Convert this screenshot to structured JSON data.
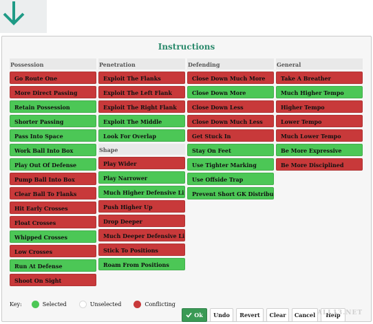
{
  "dialog": {
    "title": "Instructions"
  },
  "colors": {
    "selected": "#4cc756",
    "conflicting": "#c8393a",
    "unselected": "#ffffff",
    "accent": "#2b8a6c"
  },
  "columns": [
    {
      "header": "Possession",
      "items": [
        {
          "label": "Go Route One",
          "state": "red"
        },
        {
          "label": "More Direct Passing",
          "state": "red"
        },
        {
          "label": "Retain Possession",
          "state": "green"
        },
        {
          "label": "Shorter Passing",
          "state": "green"
        },
        {
          "label": "Pass Into Space",
          "state": "green"
        },
        {
          "label": "Work Ball Into Box",
          "state": "green"
        },
        {
          "label": "Play Out Of Defense",
          "state": "green"
        },
        {
          "label": "Pump Ball Into Box",
          "state": "red"
        },
        {
          "label": "Clear Ball To Flanks",
          "state": "red"
        },
        {
          "label": "Hit Early Crosses",
          "state": "red"
        },
        {
          "label": "Float Crosses",
          "state": "red"
        },
        {
          "label": "Whipped Crosses",
          "state": "green"
        },
        {
          "label": "Low Crosses",
          "state": "red"
        },
        {
          "label": "Run At Defense",
          "state": "green"
        },
        {
          "label": "Shoot On Sight",
          "state": "red"
        }
      ]
    },
    {
      "header": "Penetration",
      "items": [
        {
          "label": "Exploit The Flanks",
          "state": "red"
        },
        {
          "label": "Exploit The Left Flank",
          "state": "red"
        },
        {
          "label": "Exploit The Right Flank",
          "state": "red"
        },
        {
          "label": "Exploit The Middle",
          "state": "green"
        },
        {
          "label": "Look For Overlap",
          "state": "green"
        }
      ],
      "subheader": "Shape",
      "subitems": [
        {
          "label": "Play Wider",
          "state": "red"
        },
        {
          "label": "Play Narrower",
          "state": "green"
        },
        {
          "label": "Much Higher Defensive Line",
          "state": "green"
        },
        {
          "label": "Push Higher Up",
          "state": "red"
        },
        {
          "label": "Drop Deeper",
          "state": "red"
        },
        {
          "label": "Much Deeper Defensive Line",
          "state": "red"
        },
        {
          "label": "Stick To Positions",
          "state": "red"
        },
        {
          "label": "Roam From Positions",
          "state": "green"
        }
      ]
    },
    {
      "header": "Defending",
      "items": [
        {
          "label": "Close Down Much More",
          "state": "red"
        },
        {
          "label": "Close Down More",
          "state": "green"
        },
        {
          "label": "Close Down Less",
          "state": "red"
        },
        {
          "label": "Close Down Much Less",
          "state": "red"
        },
        {
          "label": "Get Stuck In",
          "state": "red"
        },
        {
          "label": "Stay On Feet",
          "state": "green"
        },
        {
          "label": "Use Tighter Marking",
          "state": "green"
        },
        {
          "label": "Use Offside Trap",
          "state": "green"
        },
        {
          "label": "Prevent Short GK Distributi...",
          "state": "green"
        }
      ]
    },
    {
      "header": "General",
      "items": [
        {
          "label": "Take A Breather",
          "state": "red"
        },
        {
          "label": "Much Higher Tempo",
          "state": "green"
        },
        {
          "label": "Higher Tempo",
          "state": "red"
        },
        {
          "label": "Lower Tempo",
          "state": "red"
        },
        {
          "label": "Much Lower Tempo",
          "state": "red"
        },
        {
          "label": "Be More Expressive",
          "state": "green"
        },
        {
          "label": "Be More Disciplined",
          "state": "red"
        }
      ]
    }
  ],
  "key": {
    "title": "Key:",
    "selected": "Selected",
    "unselected": "Unselected",
    "conflicting": "Conflicting"
  },
  "actions": {
    "ok": "Ok",
    "undo": "Undo",
    "revert": "Revert",
    "clear": "Clear",
    "cancel": "Cancel",
    "help": "Help"
  },
  "watermark": "ALL13.NET"
}
